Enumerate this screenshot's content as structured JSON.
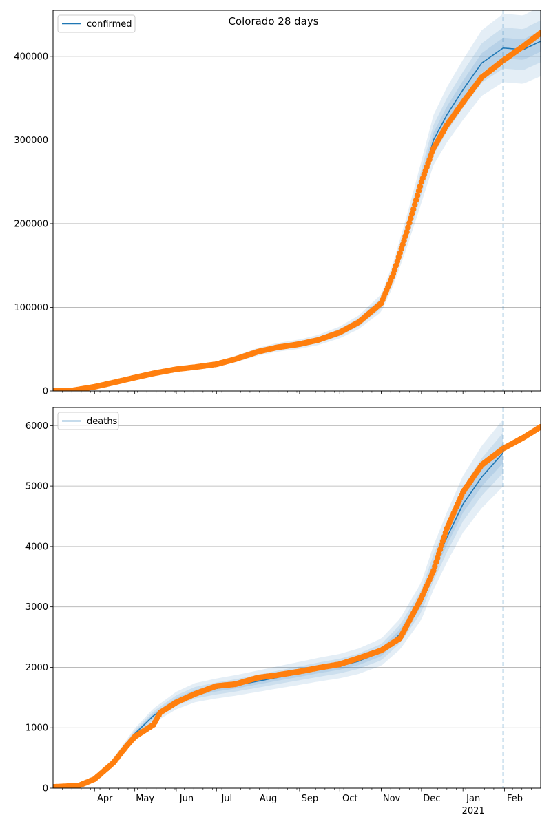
{
  "figure": {
    "title": "Colorado 28 days"
  },
  "chart_data": [
    {
      "type": "line",
      "panel": "top",
      "legend": {
        "entry": "confirmed",
        "placement": "top-left"
      },
      "xlim": [
        "2020-03-01",
        "2021-02-28"
      ],
      "ylim": [
        0,
        455000
      ],
      "grid": "y",
      "yticks": [
        0,
        100000,
        200000,
        300000,
        400000
      ],
      "ytick_labels": [
        "0",
        "100000",
        "200000",
        "300000",
        "400000"
      ],
      "forecast_start": "2021-01-31",
      "model_line": {
        "name": "confirmed",
        "color": "#1f77b4",
        "points": [
          [
            "2020-03-01",
            0
          ],
          [
            "2020-03-15",
            500
          ],
          [
            "2020-04-01",
            5000
          ],
          [
            "2020-04-15",
            10000
          ],
          [
            "2020-05-01",
            16000
          ],
          [
            "2020-05-15",
            21000
          ],
          [
            "2020-06-01",
            26000
          ],
          [
            "2020-06-15",
            28500
          ],
          [
            "2020-07-01",
            32000
          ],
          [
            "2020-07-15",
            38000
          ],
          [
            "2020-08-01",
            47000
          ],
          [
            "2020-08-15",
            52000
          ],
          [
            "2020-09-01",
            56000
          ],
          [
            "2020-09-15",
            61000
          ],
          [
            "2020-10-01",
            70000
          ],
          [
            "2020-10-15",
            82000
          ],
          [
            "2020-11-01",
            105000
          ],
          [
            "2020-11-10",
            140000
          ],
          [
            "2020-11-20",
            190000
          ],
          [
            "2020-12-01",
            250000
          ],
          [
            "2020-12-10",
            300000
          ],
          [
            "2020-12-20",
            330000
          ],
          [
            "2021-01-01",
            360000
          ],
          [
            "2021-01-15",
            392000
          ],
          [
            "2021-01-31",
            410000
          ],
          [
            "2021-02-15",
            408000
          ],
          [
            "2021-02-28",
            418000
          ]
        ]
      },
      "uncertainty_bands": {
        "color": "#1f77b4",
        "half_widths_fraction": [
          0.03,
          0.06,
          0.1
        ]
      },
      "observed": {
        "color": "#ff7f0e",
        "points": [
          [
            "2020-03-01",
            0
          ],
          [
            "2020-03-15",
            500
          ],
          [
            "2020-04-01",
            5000
          ],
          [
            "2020-04-15",
            10000
          ],
          [
            "2020-05-01",
            16000
          ],
          [
            "2020-05-15",
            21000
          ],
          [
            "2020-06-01",
            26000
          ],
          [
            "2020-06-15",
            28500
          ],
          [
            "2020-07-01",
            32000
          ],
          [
            "2020-07-15",
            38000
          ],
          [
            "2020-08-01",
            47000
          ],
          [
            "2020-08-15",
            52000
          ],
          [
            "2020-09-01",
            56000
          ],
          [
            "2020-09-15",
            61000
          ],
          [
            "2020-10-01",
            70000
          ],
          [
            "2020-10-15",
            82000
          ],
          [
            "2020-11-01",
            105000
          ],
          [
            "2020-11-10",
            140000
          ],
          [
            "2020-11-20",
            190000
          ],
          [
            "2020-12-01",
            250000
          ],
          [
            "2020-12-10",
            290000
          ],
          [
            "2020-12-20",
            318000
          ],
          [
            "2021-01-01",
            345000
          ],
          [
            "2021-01-15",
            375000
          ],
          [
            "2021-01-31",
            395000
          ],
          [
            "2021-02-15",
            412000
          ],
          [
            "2021-02-28",
            428000
          ]
        ]
      }
    },
    {
      "type": "line",
      "panel": "bottom",
      "legend": {
        "entry": "deaths",
        "placement": "top-left"
      },
      "xlim": [
        "2020-03-01",
        "2021-02-28"
      ],
      "ylim": [
        0,
        6300
      ],
      "grid": "y",
      "yticks": [
        0,
        1000,
        2000,
        3000,
        4000,
        5000,
        6000
      ],
      "ytick_labels": [
        "0",
        "1000",
        "2000",
        "3000",
        "4000",
        "5000",
        "6000"
      ],
      "xticks": [
        "2020-04-01",
        "2020-05-01",
        "2020-06-01",
        "2020-07-01",
        "2020-08-01",
        "2020-09-01",
        "2020-10-01",
        "2020-11-01",
        "2020-12-01",
        "2021-01-01",
        "2021-02-01"
      ],
      "xtick_labels": [
        "Apr",
        "May",
        "Jun",
        "Jul",
        "Aug",
        "Sep",
        "Oct",
        "Nov",
        "Dec",
        "Jan",
        "Feb"
      ],
      "year_label": "2021",
      "forecast_start": "2021-01-31",
      "model_line": {
        "name": "deaths",
        "color": "#1f77b4",
        "points": [
          [
            "2020-03-01",
            0
          ],
          [
            "2020-03-20",
            40
          ],
          [
            "2020-04-01",
            150
          ],
          [
            "2020-04-15",
            450
          ],
          [
            "2020-05-01",
            900
          ],
          [
            "2020-05-15",
            1200
          ],
          [
            "2020-06-01",
            1450
          ],
          [
            "2020-06-15",
            1580
          ],
          [
            "2020-07-01",
            1650
          ],
          [
            "2020-07-15",
            1700
          ],
          [
            "2020-08-01",
            1770
          ],
          [
            "2020-08-15",
            1830
          ],
          [
            "2020-09-01",
            1900
          ],
          [
            "2020-09-15",
            1960
          ],
          [
            "2020-10-01",
            2020
          ],
          [
            "2020-10-15",
            2100
          ],
          [
            "2020-11-01",
            2250
          ],
          [
            "2020-11-15",
            2550
          ],
          [
            "2020-12-01",
            3100
          ],
          [
            "2020-12-10",
            3650
          ],
          [
            "2020-12-20",
            4150
          ],
          [
            "2021-01-01",
            4700
          ],
          [
            "2021-01-15",
            5150
          ],
          [
            "2021-01-31",
            5550
          ]
        ]
      },
      "uncertainty_bands": {
        "color": "#1f77b4",
        "half_widths_fraction": [
          0.03,
          0.06,
          0.1
        ]
      },
      "observed": {
        "color": "#ff7f0e",
        "points": [
          [
            "2020-03-01",
            20
          ],
          [
            "2020-03-20",
            40
          ],
          [
            "2020-04-01",
            150
          ],
          [
            "2020-04-15",
            420
          ],
          [
            "2020-04-25",
            700
          ],
          [
            "2020-05-01",
            850
          ],
          [
            "2020-05-15",
            1050
          ],
          [
            "2020-05-20",
            1250
          ],
          [
            "2020-06-01",
            1420
          ],
          [
            "2020-06-15",
            1560
          ],
          [
            "2020-07-01",
            1690
          ],
          [
            "2020-07-15",
            1720
          ],
          [
            "2020-08-01",
            1830
          ],
          [
            "2020-08-15",
            1870
          ],
          [
            "2020-09-01",
            1930
          ],
          [
            "2020-09-15",
            1990
          ],
          [
            "2020-10-01",
            2050
          ],
          [
            "2020-10-15",
            2150
          ],
          [
            "2020-11-01",
            2280
          ],
          [
            "2020-11-15",
            2480
          ],
          [
            "2020-12-01",
            3150
          ],
          [
            "2020-12-10",
            3600
          ],
          [
            "2020-12-20",
            4300
          ],
          [
            "2021-01-01",
            4900
          ],
          [
            "2021-01-15",
            5350
          ],
          [
            "2021-01-31",
            5620
          ],
          [
            "2021-02-15",
            5800
          ],
          [
            "2021-02-28",
            5980
          ]
        ]
      }
    }
  ]
}
